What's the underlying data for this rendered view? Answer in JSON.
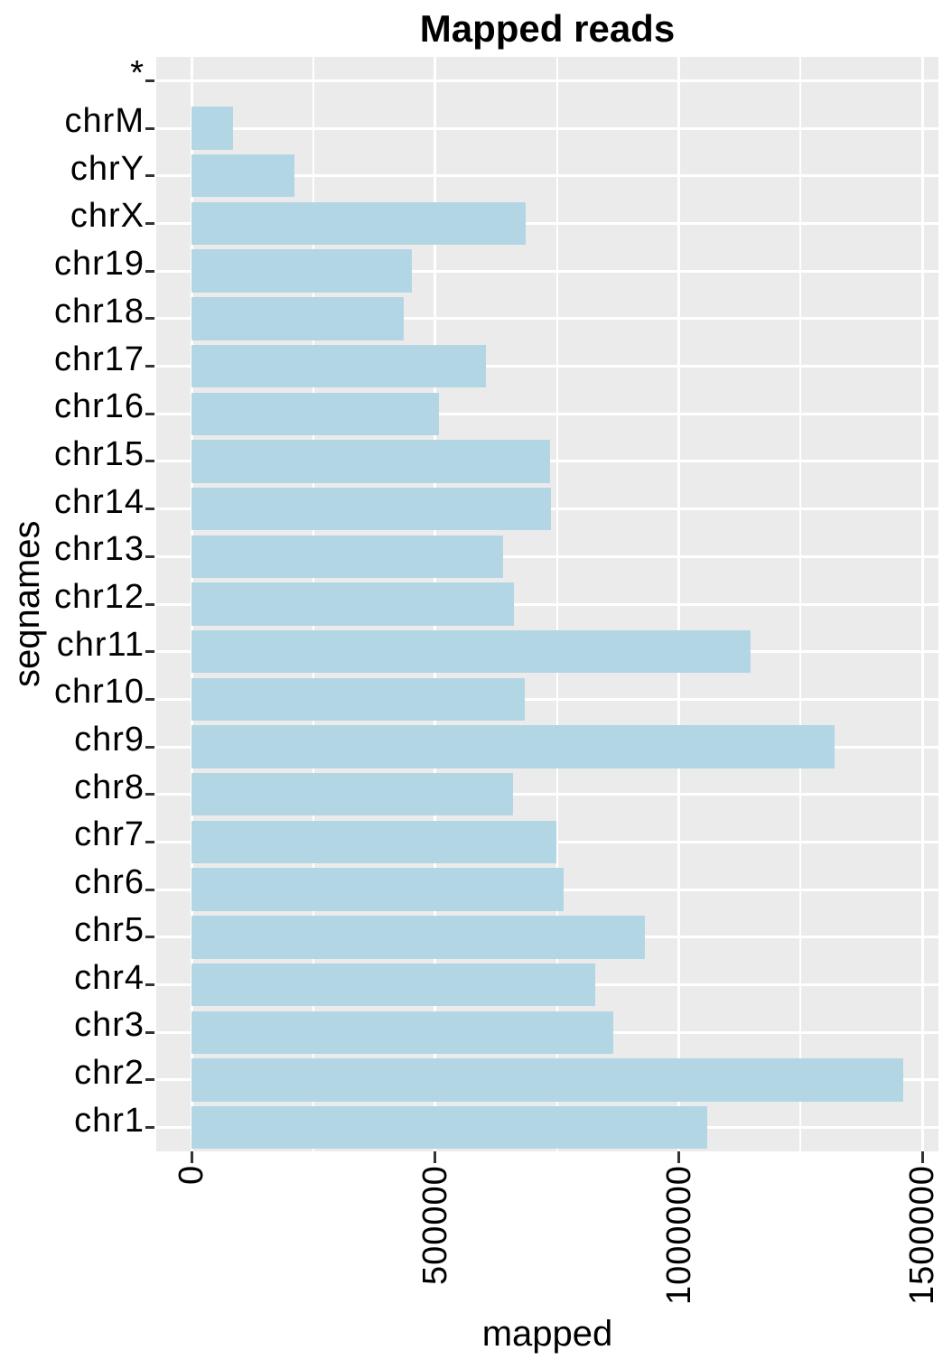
{
  "chart_data": {
    "type": "bar",
    "orientation": "horizontal",
    "title": "Mapped reads",
    "xlabel": "mapped",
    "ylabel": "seqnames",
    "categories_top_to_bottom": [
      "*",
      "chrM",
      "chrY",
      "chrX",
      "chr19",
      "chr18",
      "chr17",
      "chr16",
      "chr15",
      "chr14",
      "chr13",
      "chr12",
      "chr11",
      "chr10",
      "chr9",
      "chr8",
      "chr7",
      "chr6",
      "chr5",
      "chr4",
      "chr3",
      "chr2",
      "chr1"
    ],
    "values": [
      0,
      85000,
      211000,
      686000,
      452000,
      435000,
      604000,
      508000,
      736000,
      738000,
      640000,
      662000,
      1147000,
      683000,
      1319000,
      659000,
      749000,
      763000,
      930000,
      829000,
      865000,
      1460000,
      1058000
    ],
    "x_ticks": [
      {
        "value": 0,
        "label": "0"
      },
      {
        "value": 500000,
        "label": "500000"
      },
      {
        "value": 1000000,
        "label": "1000000"
      },
      {
        "value": 1500000,
        "label": "1500000"
      }
    ],
    "x_minor_ticks": [
      250000,
      750000,
      1250000
    ],
    "xlim": [
      -73000,
      1533000
    ],
    "grid": "major and minor vertical white gridlines, major horizontal white gridlines per category, on gray panel",
    "legend": "none",
    "colors": {
      "bar_fill": "#b3d6e4",
      "panel_bg": "#ebebeb",
      "grid": "#ffffff",
      "text": "#000000",
      "tick": "#333333"
    }
  }
}
